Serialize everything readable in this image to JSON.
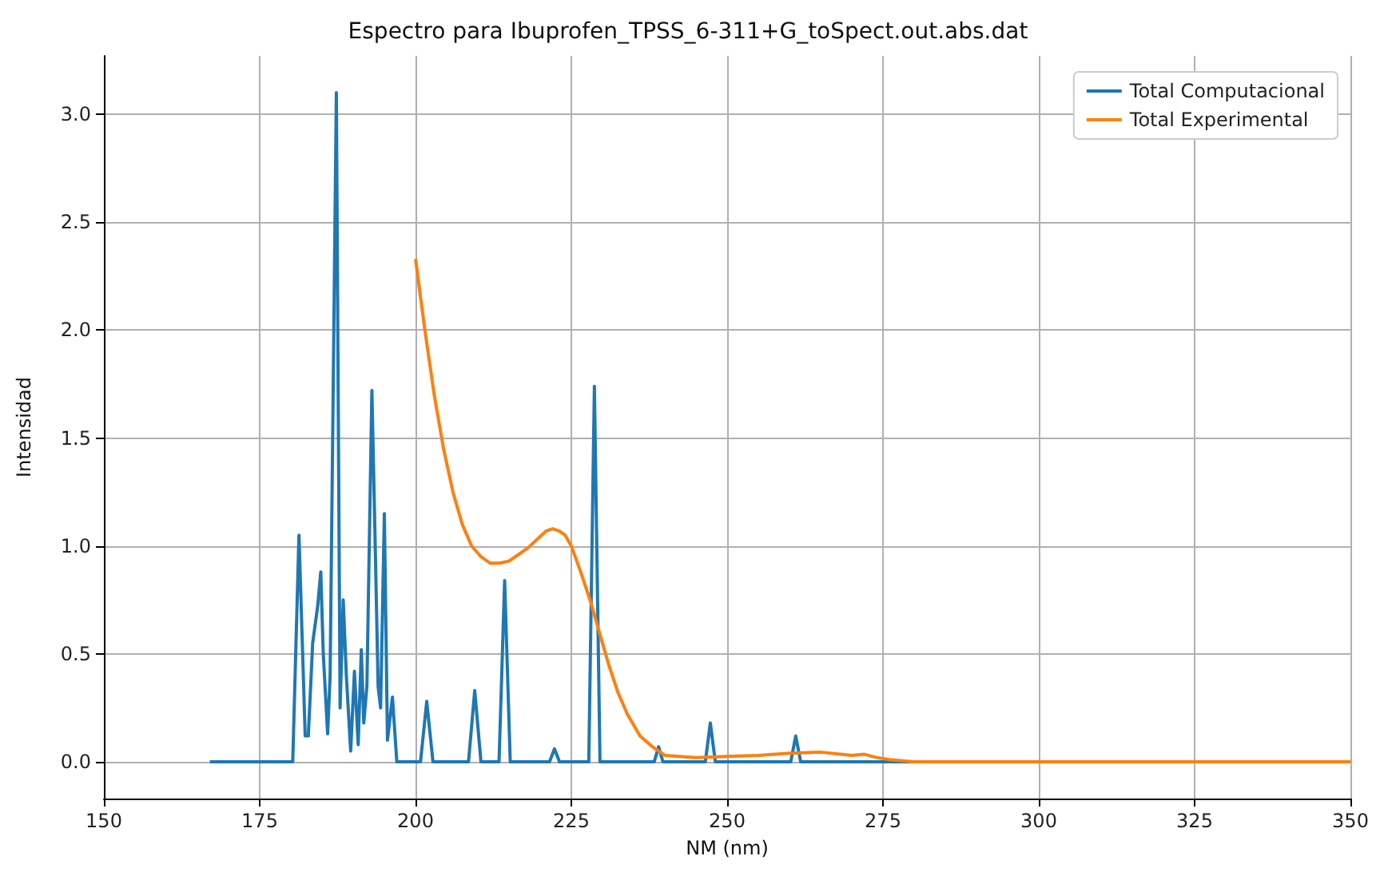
{
  "chart_data": {
    "type": "line",
    "title": "Espectro para Ibuprofen_TPSS_6-311+G_toSpect.out.abs.dat",
    "xlabel": "NM (nm)",
    "ylabel": "Intensidad",
    "xlim": [
      150,
      350
    ],
    "xticks": [
      150,
      175,
      200,
      225,
      250,
      275,
      300,
      325,
      350
    ],
    "ylim": [
      -0.17,
      3.27
    ],
    "yticks": [
      {
        "value": 0,
        "label": "0.0"
      },
      0.5,
      {
        "value": 1,
        "label": "1.0"
      },
      1.5,
      {
        "value": 2,
        "label": "2.0"
      },
      2.5,
      {
        "value": 3,
        "label": "3.0"
      }
    ],
    "grid": true,
    "legend": "top right",
    "marker": "none",
    "line_style": "solid",
    "series": [
      {
        "name": "Total Computacional",
        "color": "#1f77b4",
        "x": [
          167,
          180.3,
          181.3,
          182.3,
          182.8,
          183.5,
          184.3,
          184.8,
          185.2,
          185.9,
          186.3,
          187.3,
          187.9,
          188.4,
          188.9,
          189.6,
          190.2,
          190.8,
          191.3,
          191.7,
          192.2,
          193,
          193.5,
          194,
          194.4,
          195,
          195.5,
          196.3,
          197,
          200.8,
          201.8,
          202.8,
          208.5,
          209.5,
          210.5,
          213.4,
          214.3,
          215.2,
          221.5,
          222.3,
          223.1,
          227.8,
          228.7,
          229.6,
          238.3,
          239,
          239.7,
          246.5,
          247.3,
          248.1,
          260.2,
          261,
          261.8,
          333.5
        ],
        "values": [
          0,
          0,
          1.05,
          0.12,
          0.12,
          0.55,
          0.72,
          0.88,
          0.5,
          0.13,
          0.4,
          3.1,
          0.25,
          0.75,
          0.4,
          0.05,
          0.42,
          0.08,
          0.52,
          0.18,
          0.35,
          1.72,
          1.05,
          0.35,
          0.25,
          1.15,
          0.1,
          0.3,
          0,
          0,
          0.28,
          0,
          0,
          0.33,
          0,
          0,
          0.84,
          0,
          0,
          0.06,
          0,
          0,
          1.74,
          0,
          0,
          0.07,
          0,
          0,
          0.18,
          0,
          0,
          0.12,
          0,
          0
        ]
      },
      {
        "name": "Total Experimental",
        "color": "#ff7f0e",
        "x": [
          200,
          201.5,
          203,
          204.5,
          206,
          207.5,
          209,
          210.5,
          212,
          213.5,
          215,
          216.5,
          218,
          219.5,
          221,
          222,
          223,
          224,
          225,
          226.5,
          228,
          229.5,
          231,
          232.5,
          234,
          236,
          238,
          240,
          245,
          250,
          255,
          260,
          265,
          270,
          272,
          274,
          276,
          280,
          300,
          350
        ],
        "values": [
          2.33,
          2.0,
          1.7,
          1.45,
          1.25,
          1.1,
          1.0,
          0.95,
          0.92,
          0.92,
          0.93,
          0.96,
          0.99,
          1.03,
          1.07,
          1.08,
          1.07,
          1.05,
          1.0,
          0.88,
          0.75,
          0.6,
          0.45,
          0.32,
          0.22,
          0.12,
          0.07,
          0.03,
          0.02,
          0.025,
          0.03,
          0.04,
          0.045,
          0.03,
          0.035,
          0.02,
          0.01,
          0,
          0,
          0
        ]
      }
    ]
  }
}
